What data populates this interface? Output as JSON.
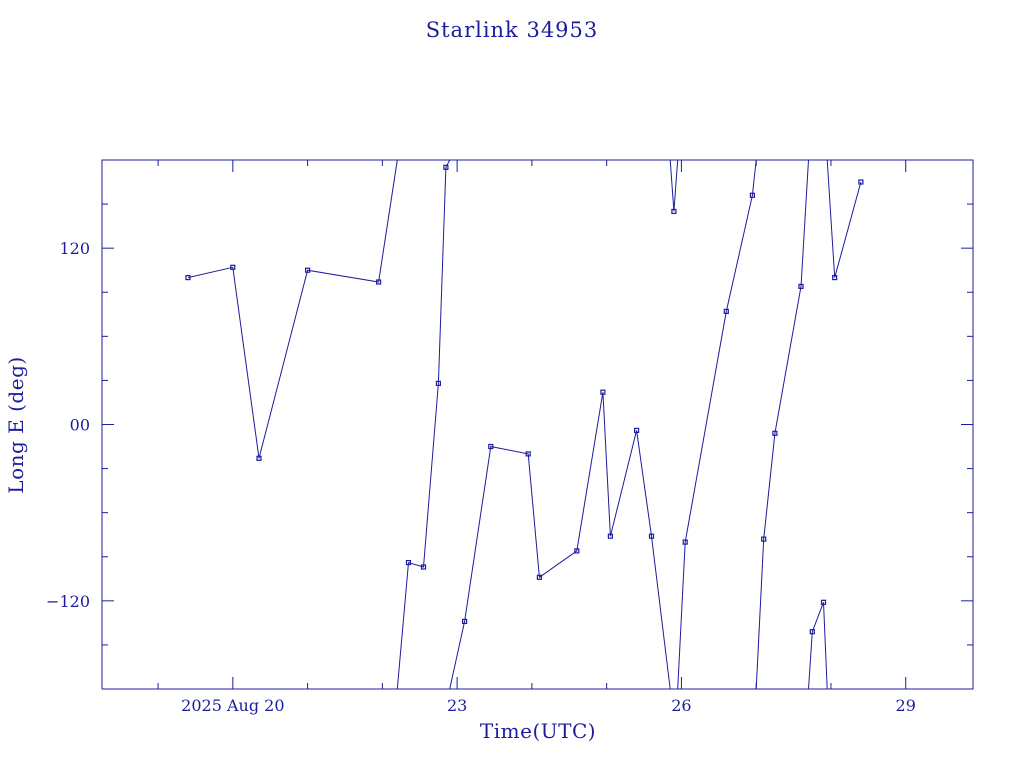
{
  "chart_data": {
    "type": "line",
    "title": "Starlink 34953",
    "xlabel": "Time(UTC)",
    "ylabel": "Long E (deg)",
    "xlim": [
      18.25,
      29.9
    ],
    "ylim": [
      -180,
      180
    ],
    "y_ticks": [
      {
        "value": 120,
        "label": "120"
      },
      {
        "value": 0,
        "label": "00"
      },
      {
        "value": -120,
        "label": "−120"
      }
    ],
    "x_ticks": [
      {
        "value": 20,
        "label": "2025 Aug 20"
      },
      {
        "value": 23,
        "label": "23"
      },
      {
        "value": 26,
        "label": "26"
      },
      {
        "value": 29,
        "label": "29"
      }
    ],
    "grid": false,
    "series": [
      {
        "values": [
          [
            19.4,
            100
          ],
          [
            20.0,
            107
          ],
          [
            20.35,
            -23
          ],
          [
            21.0,
            105
          ],
          [
            21.95,
            97
          ],
          [
            22.2,
            180
          ],
          null,
          [
            22.2,
            -180
          ],
          [
            22.35,
            -94
          ],
          [
            22.55,
            -97
          ],
          [
            22.75,
            28
          ],
          [
            22.85,
            175
          ],
          [
            22.9,
            180
          ],
          null,
          [
            22.9,
            -180
          ],
          [
            23.1,
            -134
          ],
          [
            23.45,
            -15
          ],
          [
            23.95,
            -20
          ],
          [
            24.1,
            -104
          ],
          [
            24.6,
            -86
          ],
          [
            24.95,
            22
          ],
          [
            25.05,
            -76
          ],
          [
            25.4,
            -4
          ],
          [
            25.6,
            -76
          ],
          [
            25.85,
            -180
          ],
          null,
          [
            25.85,
            180
          ],
          [
            25.9,
            145
          ],
          [
            25.95,
            180
          ],
          null,
          [
            25.95,
            -180
          ],
          [
            26.05,
            -80
          ],
          [
            26.6,
            77
          ],
          [
            26.95,
            156
          ],
          [
            27.0,
            180
          ],
          null,
          [
            27.0,
            -180
          ],
          [
            27.1,
            -78
          ],
          [
            27.25,
            -6
          ],
          [
            27.6,
            94
          ],
          [
            27.7,
            180
          ],
          null,
          [
            27.7,
            -180
          ],
          [
            27.75,
            -141
          ],
          [
            27.9,
            -121
          ],
          [
            27.95,
            -180
          ],
          null,
          [
            27.95,
            180
          ],
          [
            28.05,
            100
          ],
          [
            28.4,
            165
          ]
        ],
        "markers": [
          [
            19.4,
            100
          ],
          [
            20.0,
            107
          ],
          [
            20.35,
            -23
          ],
          [
            21.0,
            105
          ],
          [
            21.95,
            97
          ],
          [
            22.35,
            -94
          ],
          [
            22.55,
            -97
          ],
          [
            22.75,
            28
          ],
          [
            22.85,
            175
          ],
          [
            23.1,
            -134
          ],
          [
            23.45,
            -15
          ],
          [
            23.95,
            -20
          ],
          [
            24.1,
            -104
          ],
          [
            24.6,
            -86
          ],
          [
            24.95,
            22
          ],
          [
            25.05,
            -76
          ],
          [
            25.4,
            -4
          ],
          [
            25.6,
            -76
          ],
          [
            25.9,
            145
          ],
          [
            26.05,
            -80
          ],
          [
            26.6,
            77
          ],
          [
            26.95,
            156
          ],
          [
            27.1,
            -78
          ],
          [
            27.25,
            -6
          ],
          [
            27.6,
            94
          ],
          [
            27.75,
            -141
          ],
          [
            27.9,
            -121
          ],
          [
            28.05,
            100
          ],
          [
            28.4,
            165
          ]
        ]
      }
    ]
  },
  "colors": {
    "ink": "#1c1c9c",
    "background": "#ffffff"
  }
}
